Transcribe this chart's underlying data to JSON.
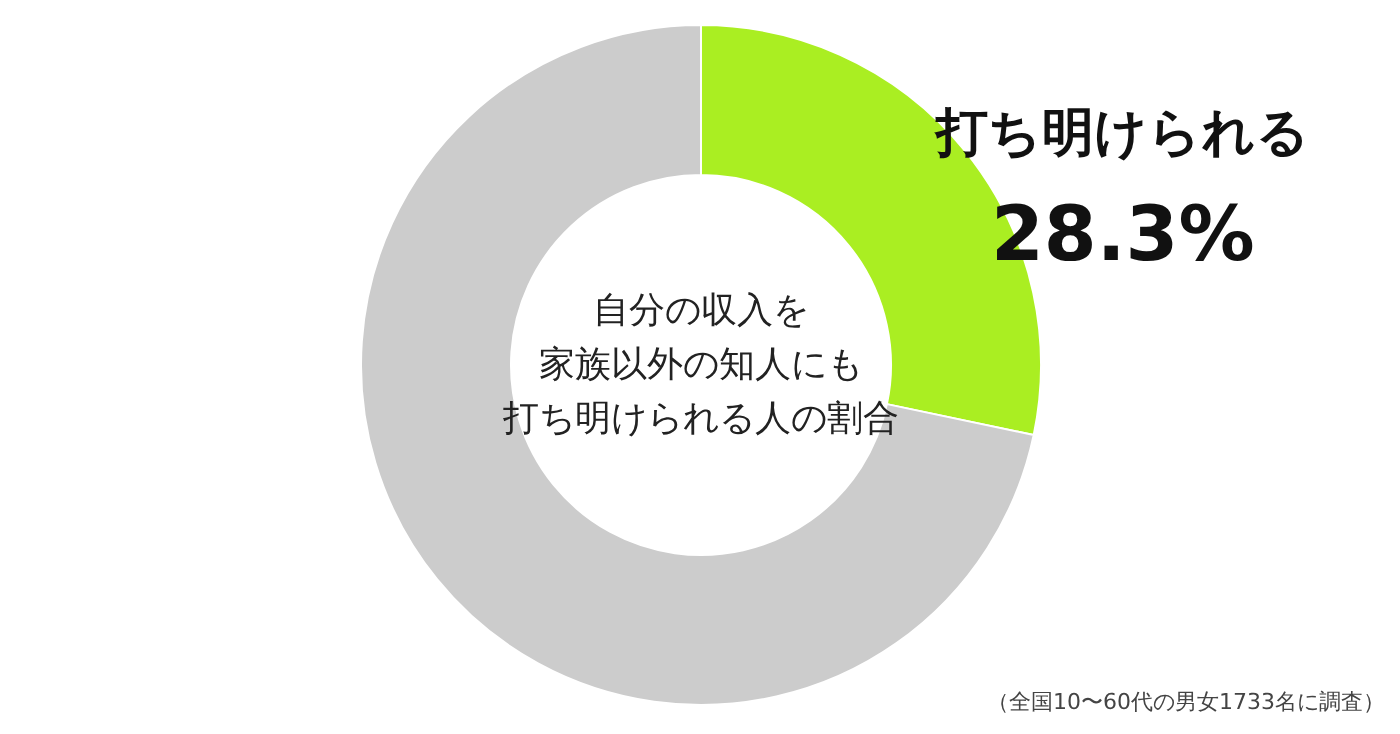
{
  "chart_data": {
    "type": "donut",
    "title": "自分の収入を家族以外の知人にも打ち明けられる人の割合",
    "categories": [
      "打ち明けられる",
      null
    ],
    "values": [
      28.3,
      71.7
    ],
    "colors": [
      "#aaee22",
      "#cccccc"
    ],
    "value_labels": [
      "28.3%",
      null
    ],
    "annotations": [
      "（全国10〜60代の男女1733名に調査）"
    ]
  }
}
